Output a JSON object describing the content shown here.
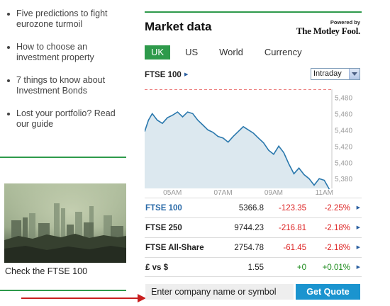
{
  "links": [
    {
      "text": "Five predictions to fight eurozone turmoil"
    },
    {
      "text": "How to choose an investment property"
    },
    {
      "text": "7 things to know about Investment Bonds"
    },
    {
      "text": "Lost your portfolio? Read our guide"
    }
  ],
  "promo": {
    "caption": "Check the FTSE 100"
  },
  "market": {
    "title": "Market data",
    "powered_by": "Powered by",
    "brand": "The Motley Fool.",
    "tabs": [
      {
        "label": "UK",
        "active": true
      },
      {
        "label": "US",
        "active": false
      },
      {
        "label": "World",
        "active": false
      },
      {
        "label": "Currency",
        "active": false
      }
    ],
    "selected_index": "FTSE 100",
    "period": "Intraday",
    "quotes": [
      {
        "name": "FTSE 100",
        "price": "5366.8",
        "change": "-123.35",
        "pct": "-2.25%"
      },
      {
        "name": "FTSE 250",
        "price": "9744.23",
        "change": "-216.81",
        "pct": "-2.18%"
      },
      {
        "name": "FTSE All-Share",
        "price": "2754.78",
        "change": "-61.45",
        "pct": "-2.18%"
      },
      {
        "name": "£ vs $",
        "price": "1.55",
        "change": "+0",
        "pct": "+0.01%"
      }
    ]
  },
  "search": {
    "placeholder": "Enter company name or symbol",
    "button": "Get Quote"
  },
  "colors": {
    "accent": "#2e9a4b",
    "button": "#1b94cf",
    "negative": "#dd2222",
    "positive": "#1a8a1a",
    "line": "#2a78ad",
    "area": "#dce8ef"
  },
  "chart_data": {
    "type": "area",
    "title": "",
    "x_ticks": [
      "05AM",
      "07AM",
      "09AM",
      "11AM"
    ],
    "y_ticks": [
      5480,
      5460,
      5440,
      5420,
      5400,
      5380
    ],
    "ylim": [
      5368,
      5490
    ],
    "previous_close": 5490.15,
    "y_axis_position": "right",
    "grid": false,
    "x": [
      3.9,
      4.05,
      4.2,
      4.4,
      4.6,
      4.8,
      5.0,
      5.2,
      5.4,
      5.6,
      5.8,
      6.0,
      6.2,
      6.4,
      6.6,
      6.8,
      7.0,
      7.2,
      7.4,
      7.6,
      7.8,
      8.0,
      8.2,
      8.4,
      8.6,
      8.8,
      9.0,
      9.2,
      9.4,
      9.6,
      9.8,
      10.0,
      10.2,
      10.4,
      10.6,
      10.8,
      11.0,
      11.2
    ],
    "values": [
      5438,
      5452,
      5460,
      5452,
      5448,
      5455,
      5458,
      5462,
      5456,
      5462,
      5460,
      5452,
      5446,
      5440,
      5437,
      5432,
      5430,
      5425,
      5432,
      5438,
      5444,
      5440,
      5436,
      5430,
      5424,
      5415,
      5410,
      5420,
      5412,
      5398,
      5386,
      5393,
      5385,
      5380,
      5372,
      5380,
      5378,
      5367
    ]
  }
}
